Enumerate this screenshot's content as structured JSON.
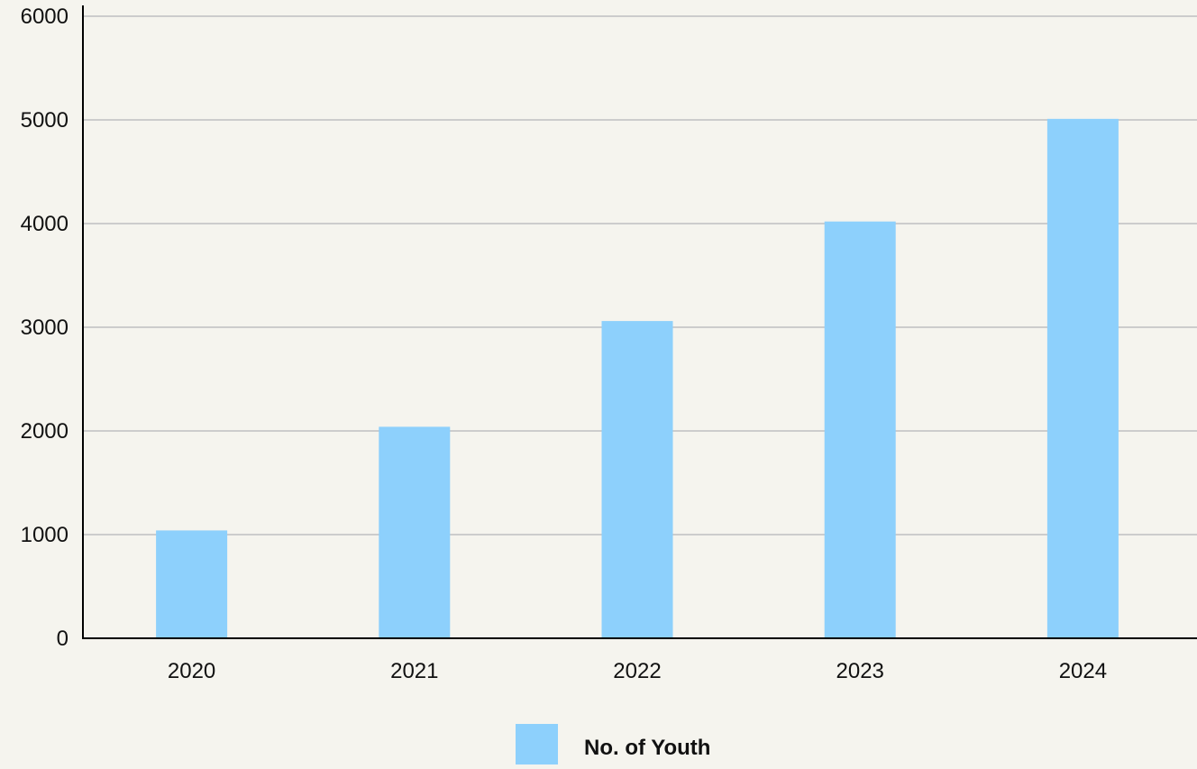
{
  "chart_data": {
    "type": "bar",
    "categories": [
      "2020",
      "2021",
      "2022",
      "2023",
      "2024"
    ],
    "series": [
      {
        "name": "No. of Youth",
        "values": [
          1040,
          2040,
          3060,
          4020,
          5010
        ],
        "color": "#8dd0fc"
      }
    ],
    "ylim": [
      0,
      6000
    ],
    "yticks": [
      0,
      1000,
      2000,
      3000,
      4000,
      5000,
      6000
    ],
    "grid": true,
    "legend_position": "bottom-center",
    "title": "",
    "xlabel": "",
    "ylabel": ""
  },
  "colors": {
    "background": "#f5f4ee",
    "grid": "#cccccc",
    "axis": "#000000"
  }
}
